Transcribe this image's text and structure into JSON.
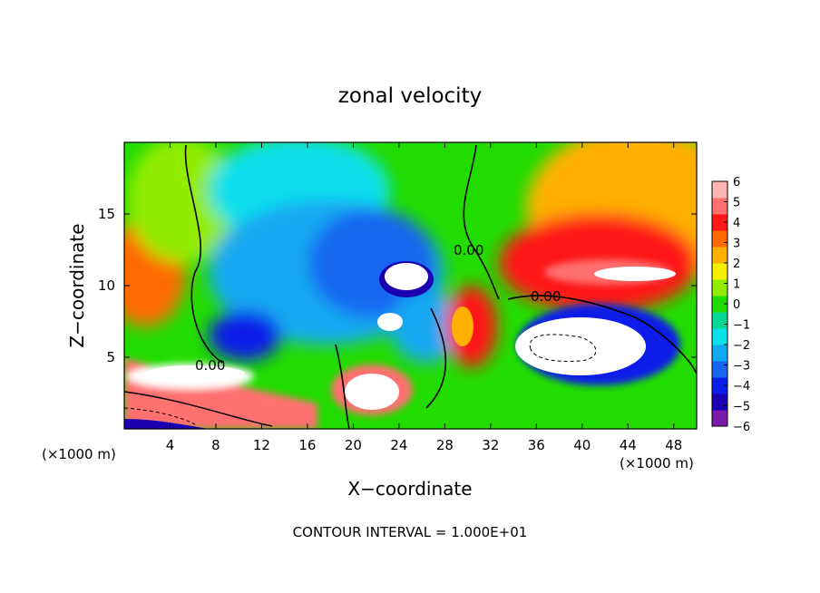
{
  "chart_data": {
    "type": "heatmap",
    "title": "zonal velocity",
    "xlabel": "X−coordinate",
    "ylabel": "Z−coordinate",
    "x_unit": "(×1000 m)",
    "x_unit_right": "(×1000 m)",
    "xlim": [
      0,
      50
    ],
    "ylim": [
      0,
      20
    ],
    "x_ticks": [
      "4",
      "8",
      "12",
      "16",
      "20",
      "24",
      "28",
      "32",
      "36",
      "40",
      "44",
      "48"
    ],
    "y_ticks": [
      "5",
      "10",
      "15"
    ],
    "colorbar": {
      "ticks": [
        "6",
        "5",
        "4",
        "3",
        "2",
        "1",
        "0",
        "−1",
        "−2",
        "−3",
        "−4",
        "−5",
        "−6"
      ],
      "range": [
        -6,
        6
      ],
      "colors": [
        "#7a1aa8",
        "#1a00b0",
        "#0a1ee8",
        "#1466f0",
        "#12a8f2",
        "#0ce0ec",
        "#08d896",
        "#22dc00",
        "#92ec00",
        "#f4f000",
        "#ffb000",
        "#ff6a00",
        "#ff1818",
        "#ff7070",
        "#ffb4b4"
      ]
    },
    "contour_labels": [
      "0.00",
      "0.00",
      "0.00"
    ],
    "footer": "CONTOUR INTERVAL = 1.000E+01",
    "grid": false,
    "legend_position": "right"
  }
}
